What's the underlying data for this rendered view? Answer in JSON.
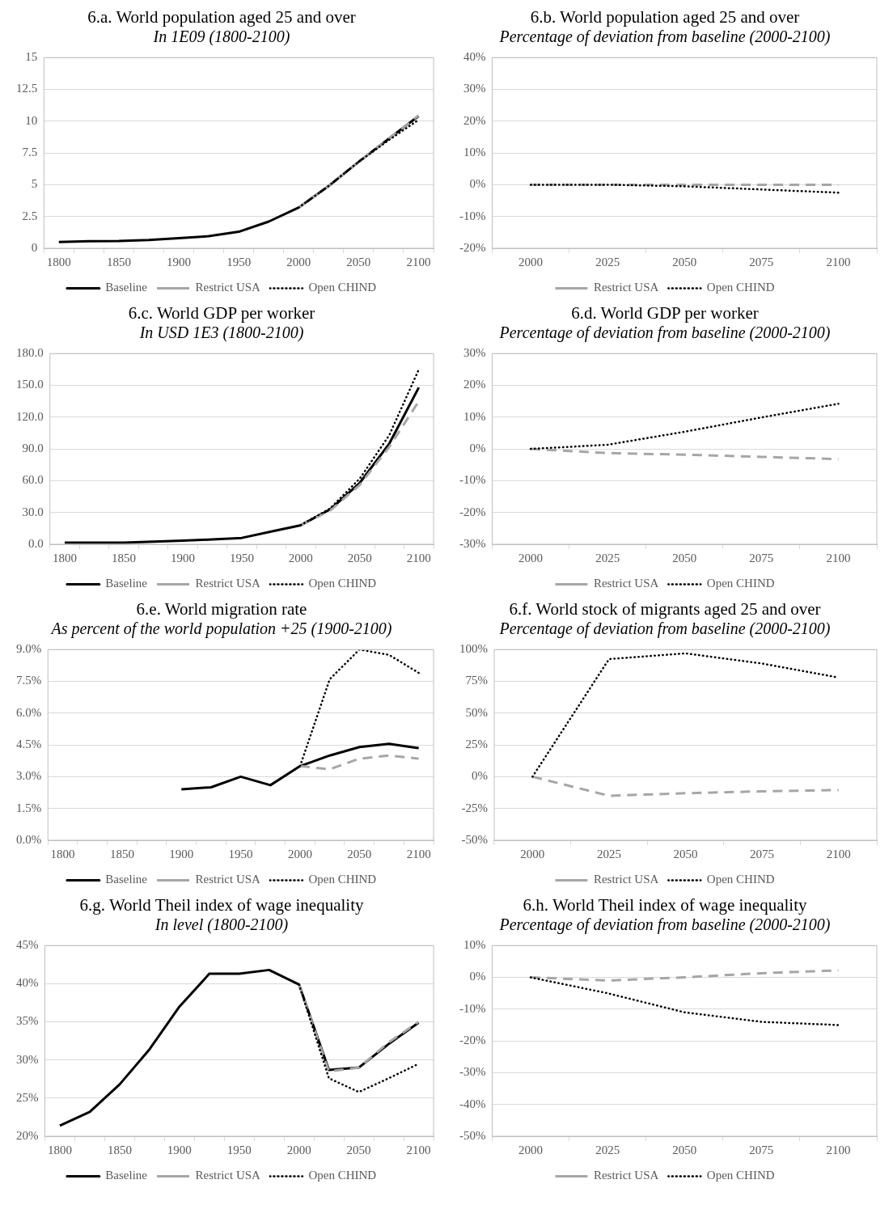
{
  "chart_data": [
    {
      "type": "line",
      "title": "6.a. World population aged 25 and over",
      "subtitle": "In 1E09 (1800-2100)",
      "categories": [
        "1800",
        null,
        "1850",
        null,
        "1900",
        null,
        "1950",
        null,
        "2000",
        null,
        "2050",
        null,
        "2100"
      ],
      "series": [
        {
          "name": "Baseline",
          "color": "#000000",
          "line_style": "solid",
          "values": [
            0.5,
            0.55,
            0.57,
            0.65,
            0.8,
            0.95,
            1.3,
            2.1,
            3.2,
            4.9,
            6.8,
            8.6,
            10.4
          ]
        },
        {
          "name": "Restrict USA",
          "color": "#a6a6a6",
          "line_style": "dashed",
          "values": [
            null,
            null,
            null,
            null,
            null,
            null,
            null,
            null,
            3.2,
            4.9,
            6.8,
            8.6,
            10.45
          ]
        },
        {
          "name": "Open CHIND",
          "color": "#000000",
          "line_style": "dotted",
          "values": [
            null,
            null,
            null,
            null,
            null,
            null,
            null,
            null,
            3.2,
            4.9,
            6.8,
            8.5,
            10.1
          ]
        }
      ],
      "ylim": [
        0,
        15
      ],
      "yticks": [
        0,
        2.5,
        5,
        7.5,
        10,
        12.5,
        15
      ],
      "grid": "y",
      "legend": "bottom"
    },
    {
      "type": "line",
      "title": "6.b. World population aged 25 and over",
      "subtitle": "Percentage of deviation from baseline (2000-2100)",
      "categories": [
        "2000",
        "2025",
        "2050",
        "2075",
        "2100"
      ],
      "series": [
        {
          "name": "Restrict USA",
          "color": "#a6a6a6",
          "line_style": "dashed",
          "values": [
            0,
            0,
            0,
            0,
            0
          ]
        },
        {
          "name": "Open CHIND",
          "color": "#000000",
          "line_style": "dotted",
          "values": [
            0,
            0,
            -0.5,
            -1.5,
            -2.5
          ]
        }
      ],
      "ylim": [
        -20,
        40
      ],
      "yticks": [
        {
          "value": -20,
          "label": "-20%"
        },
        {
          "value": -10,
          "label": "-10%"
        },
        {
          "value": 0,
          "label": "0%"
        },
        {
          "value": 10,
          "label": "10%"
        },
        {
          "value": 20,
          "label": "20%"
        },
        {
          "value": 30,
          "label": "30%"
        },
        {
          "value": 40,
          "label": "40%"
        }
      ],
      "grid": "y",
      "legend": "bottom"
    },
    {
      "type": "line",
      "title": "6.c. World GDP per worker",
      "subtitle": "In USD 1E3 (1800-2100)",
      "categories": [
        "1800",
        null,
        "1850",
        null,
        "1900",
        null,
        "1950",
        null,
        "2000",
        null,
        "2050",
        null,
        "2100"
      ],
      "series": [
        {
          "name": "Baseline",
          "color": "#000000",
          "line_style": "solid",
          "values": [
            1.5,
            1.5,
            1.5,
            2.5,
            3.5,
            4.5,
            6,
            12,
            18,
            33,
            58,
            95,
            148
          ]
        },
        {
          "name": "Restrict USA",
          "color": "#a6a6a6",
          "line_style": "dashed",
          "values": [
            null,
            null,
            null,
            null,
            null,
            null,
            null,
            null,
            18,
            32,
            56,
            92,
            135
          ]
        },
        {
          "name": "Open CHIND",
          "color": "#000000",
          "line_style": "dotted",
          "values": [
            null,
            null,
            null,
            null,
            null,
            null,
            null,
            null,
            18,
            34,
            62,
            103,
            165
          ]
        }
      ],
      "ylim": [
        0,
        180
      ],
      "yticks": [
        {
          "value": 0,
          "label": "0.0"
        },
        {
          "value": 30,
          "label": "30.0"
        },
        {
          "value": 60,
          "label": "60.0"
        },
        {
          "value": 90,
          "label": "90.0"
        },
        {
          "value": 120,
          "label": "120.0"
        },
        {
          "value": 150,
          "label": "150.0"
        },
        {
          "value": 180,
          "label": "180.0"
        }
      ],
      "grid": "y",
      "legend": "bottom"
    },
    {
      "type": "line",
      "title": "6.d. World GDP per worker",
      "subtitle": "Percentage of deviation from baseline (2000-2100)",
      "categories": [
        "2000",
        "2025",
        "2050",
        "2075",
        "2100"
      ],
      "series": [
        {
          "name": "Restrict USA",
          "color": "#a6a6a6",
          "line_style": "dashed",
          "values": [
            0,
            -1.3,
            -1.8,
            -2.5,
            -3.2
          ]
        },
        {
          "name": "Open CHIND",
          "color": "#000000",
          "line_style": "dotted",
          "values": [
            0,
            1.3,
            5.4,
            9.9,
            14.2
          ]
        }
      ],
      "ylim": [
        -30,
        30
      ],
      "yticks": [
        {
          "value": -30,
          "label": "-30%"
        },
        {
          "value": -20,
          "label": "-20%"
        },
        {
          "value": -10,
          "label": "-10%"
        },
        {
          "value": 0,
          "label": "0%"
        },
        {
          "value": 10,
          "label": "10%"
        },
        {
          "value": 20,
          "label": "20%"
        },
        {
          "value": 30,
          "label": "30%"
        }
      ],
      "grid": "y",
      "legend": "bottom"
    },
    {
      "type": "line",
      "title": "6.e. World migration rate",
      "subtitle": "As percent of the world population +25 (1900-2100)",
      "categories": [
        "1800",
        null,
        "1850",
        null,
        "1900",
        null,
        "1950",
        null,
        "2000",
        null,
        "2050",
        null,
        "2100"
      ],
      "series": [
        {
          "name": "Baseline",
          "color": "#000000",
          "line_style": "solid",
          "values": [
            null,
            null,
            null,
            null,
            2.4,
            2.5,
            3.0,
            2.6,
            3.5,
            4.0,
            4.4,
            4.55,
            4.35
          ]
        },
        {
          "name": "Restrict USA",
          "color": "#a6a6a6",
          "line_style": "dashed",
          "values": [
            null,
            null,
            null,
            null,
            null,
            null,
            null,
            null,
            3.5,
            3.35,
            3.85,
            4.0,
            3.85
          ]
        },
        {
          "name": "Open CHIND",
          "color": "#000000",
          "line_style": "dotted",
          "values": [
            null,
            null,
            null,
            null,
            null,
            null,
            null,
            null,
            3.5,
            7.6,
            9.0,
            8.75,
            7.9
          ]
        }
      ],
      "ylim": [
        0,
        9
      ],
      "yticks": [
        {
          "value": 0,
          "label": "0.0%"
        },
        {
          "value": 1.5,
          "label": "1.5%"
        },
        {
          "value": 3,
          "label": "3.0%"
        },
        {
          "value": 4.5,
          "label": "4.5%"
        },
        {
          "value": 6,
          "label": "6.0%"
        },
        {
          "value": 7.5,
          "label": "7.5%"
        },
        {
          "value": 9,
          "label": "9.0%"
        }
      ],
      "grid": "y",
      "legend": "bottom"
    },
    {
      "type": "line",
      "title": "6.f. World stock of migrants aged 25 and over",
      "subtitle": "Percentage of deviation from baseline (2000-2100)",
      "categories": [
        "2000",
        "2025",
        "2050",
        "2075",
        "2100"
      ],
      "series": [
        {
          "name": "Restrict USA",
          "color": "#a6a6a6",
          "line_style": "dashed",
          "values": [
            0,
            -15,
            -13,
            -11.5,
            -10.5
          ]
        },
        {
          "name": "Open CHIND",
          "color": "#000000",
          "line_style": "dotted",
          "values": [
            0,
            92.5,
            97,
            89,
            78
          ]
        }
      ],
      "ylim": [
        -50,
        100
      ],
      "yticks": [
        {
          "value": -50,
          "label": "-50%"
        },
        {
          "value": -25,
          "label": "-25%"
        },
        {
          "value": 0,
          "label": "0%"
        },
        {
          "value": 25,
          "label": "25%"
        },
        {
          "value": 50,
          "label": "50%"
        },
        {
          "value": 75,
          "label": "75%"
        },
        {
          "value": 100,
          "label": "100%"
        }
      ],
      "grid": "y",
      "legend": "bottom"
    },
    {
      "type": "line",
      "title": "6.g. World Theil index of wage inequality",
      "subtitle": "In level (1800-2100)",
      "categories": [
        "1800",
        null,
        "1850",
        null,
        "1900",
        null,
        "1950",
        null,
        "2000",
        null,
        "2050",
        null,
        "2100"
      ],
      "series": [
        {
          "name": "Baseline",
          "color": "#000000",
          "line_style": "solid",
          "values": [
            21.4,
            23.2,
            26.8,
            31.4,
            37,
            41.3,
            41.3,
            41.8,
            39.9,
            28.7,
            29,
            32.1,
            34.9
          ]
        },
        {
          "name": "Restrict USA",
          "color": "#a6a6a6",
          "line_style": "dashed",
          "values": [
            null,
            null,
            null,
            null,
            null,
            null,
            null,
            null,
            39.9,
            28.5,
            29,
            32.3,
            35
          ]
        },
        {
          "name": "Open CHIND",
          "color": "#000000",
          "line_style": "dotted",
          "values": [
            null,
            null,
            null,
            null,
            null,
            null,
            null,
            null,
            39.9,
            27.6,
            25.8,
            27.6,
            29.5
          ]
        }
      ],
      "ylim": [
        20,
        45
      ],
      "yticks": [
        {
          "value": 20,
          "label": "20%"
        },
        {
          "value": 25,
          "label": "25%"
        },
        {
          "value": 30,
          "label": "30%"
        },
        {
          "value": 35,
          "label": "35%"
        },
        {
          "value": 40,
          "label": "40%"
        },
        {
          "value": 45,
          "label": "45%"
        }
      ],
      "grid": "y",
      "legend": "bottom"
    },
    {
      "type": "line",
      "title": "6.h. World Theil index of wage inequality",
      "subtitle": "Percentage of deviation from baseline (2000-2100)",
      "categories": [
        "2000",
        "2025",
        "2050",
        "2075",
        "2100"
      ],
      "series": [
        {
          "name": "Restrict USA",
          "color": "#a6a6a6",
          "line_style": "dashed",
          "values": [
            0,
            -1,
            0,
            1.3,
            2.2
          ]
        },
        {
          "name": "Open CHIND",
          "color": "#000000",
          "line_style": "dotted",
          "values": [
            0,
            -5,
            -11,
            -14,
            -15
          ]
        }
      ],
      "ylim": [
        -50,
        10
      ],
      "yticks": [
        {
          "value": -50,
          "label": "-50%"
        },
        {
          "value": -40,
          "label": "-40%"
        },
        {
          "value": -30,
          "label": "-30%"
        },
        {
          "value": -20,
          "label": "-20%"
        },
        {
          "value": -10,
          "label": "-10%"
        },
        {
          "value": 0,
          "label": "0%"
        },
        {
          "value": 10,
          "label": "10%"
        }
      ],
      "grid": "y",
      "legend": "bottom"
    }
  ]
}
